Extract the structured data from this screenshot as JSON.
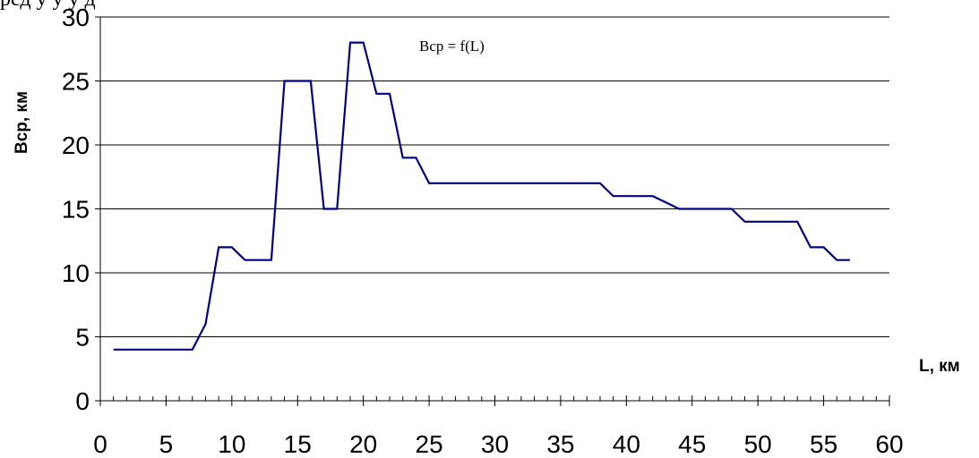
{
  "page": {
    "top_text": "ред                  у           у   у             д                  "
  },
  "chart_data": {
    "type": "line",
    "title": "Bcp = f(L)",
    "xlabel": "L, км",
    "ylabel": "Bcp, км",
    "xlim": [
      0,
      60
    ],
    "ylim": [
      0,
      30
    ],
    "x_ticks": [
      0,
      5,
      10,
      15,
      20,
      25,
      30,
      35,
      40,
      45,
      50,
      55,
      60
    ],
    "y_ticks": [
      0,
      5,
      10,
      15,
      20,
      25,
      30
    ],
    "x_minor_step": 1,
    "grid": "horizontal",
    "colors": {
      "line": "#000080",
      "grid": "#000000",
      "axis": "#000000"
    },
    "series": [
      {
        "x": [
          1,
          2,
          3,
          4,
          5,
          6,
          7,
          8,
          9,
          10,
          11,
          12,
          13,
          14,
          15,
          16,
          17,
          18,
          19,
          20,
          21,
          22,
          23,
          24,
          25,
          26,
          27,
          28,
          29,
          30,
          31,
          32,
          33,
          34,
          35,
          36,
          37,
          38,
          39,
          40,
          41,
          42,
          43,
          44,
          45,
          46,
          47,
          48,
          49,
          50,
          51,
          52,
          53,
          54,
          55,
          56,
          57
        ],
        "values": [
          4,
          4,
          4,
          4,
          4,
          4,
          4,
          6,
          12,
          12,
          11,
          11,
          11,
          25,
          25,
          25,
          15,
          15,
          28,
          28,
          24,
          24,
          19,
          19,
          17,
          17,
          17,
          17,
          17,
          17,
          17,
          17,
          17,
          17,
          17,
          17,
          17,
          17,
          16,
          16,
          16,
          16,
          15.5,
          15,
          15,
          15,
          15,
          15,
          14,
          14,
          14,
          14,
          14,
          12,
          12,
          11,
          11
        ]
      }
    ]
  }
}
